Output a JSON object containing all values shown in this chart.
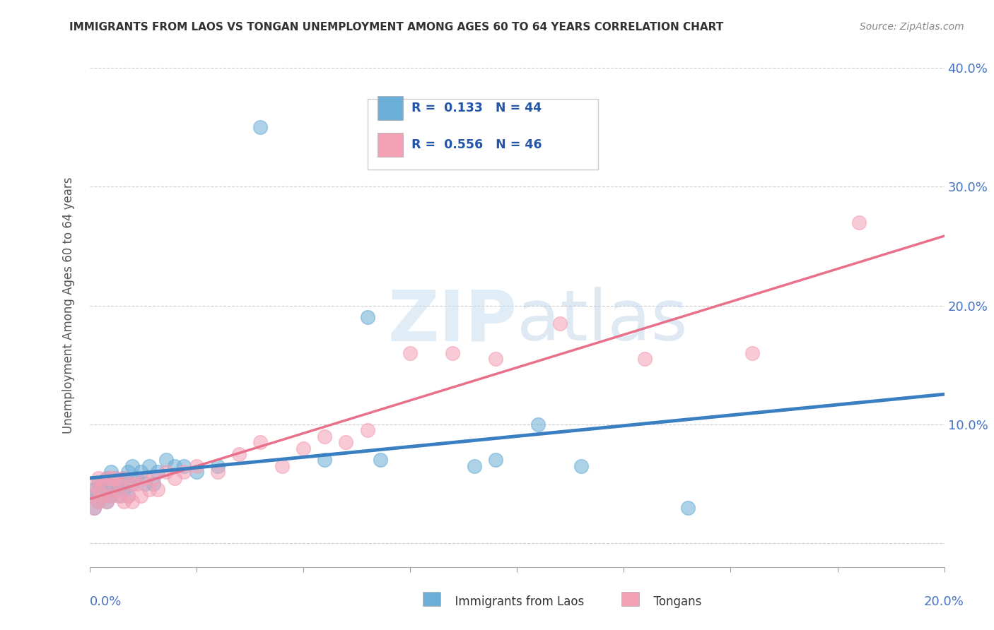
{
  "title": "IMMIGRANTS FROM LAOS VS TONGAN UNEMPLOYMENT AMONG AGES 60 TO 64 YEARS CORRELATION CHART",
  "source": "Source: ZipAtlas.com",
  "ylabel": "Unemployment Among Ages 60 to 64 years",
  "xlim": [
    0.0,
    0.2
  ],
  "ylim": [
    -0.02,
    0.42
  ],
  "yticks": [
    0.0,
    0.1,
    0.2,
    0.3,
    0.4
  ],
  "ytick_labels": [
    "",
    "10.0%",
    "20.0%",
    "30.0%",
    "40.0%"
  ],
  "color_laos": "#6baed6",
  "color_tongan": "#f4a0b5",
  "background_color": "#ffffff",
  "laos_x": [
    0.0005,
    0.001,
    0.001,
    0.002,
    0.002,
    0.002,
    0.003,
    0.003,
    0.004,
    0.004,
    0.004,
    0.005,
    0.005,
    0.005,
    0.006,
    0.006,
    0.007,
    0.007,
    0.008,
    0.008,
    0.009,
    0.009,
    0.01,
    0.01,
    0.011,
    0.012,
    0.013,
    0.014,
    0.015,
    0.016,
    0.018,
    0.02,
    0.022,
    0.025,
    0.03,
    0.04,
    0.055,
    0.065,
    0.068,
    0.09,
    0.095,
    0.105,
    0.115,
    0.14
  ],
  "laos_y": [
    0.04,
    0.03,
    0.045,
    0.035,
    0.04,
    0.05,
    0.04,
    0.05,
    0.035,
    0.045,
    0.055,
    0.04,
    0.05,
    0.06,
    0.045,
    0.055,
    0.04,
    0.05,
    0.045,
    0.055,
    0.04,
    0.06,
    0.05,
    0.065,
    0.055,
    0.06,
    0.05,
    0.065,
    0.05,
    0.06,
    0.07,
    0.065,
    0.065,
    0.06,
    0.065,
    0.35,
    0.07,
    0.19,
    0.07,
    0.065,
    0.07,
    0.1,
    0.065,
    0.03
  ],
  "tongan_x": [
    0.0005,
    0.001,
    0.001,
    0.002,
    0.002,
    0.002,
    0.003,
    0.003,
    0.004,
    0.004,
    0.005,
    0.005,
    0.006,
    0.006,
    0.007,
    0.007,
    0.008,
    0.008,
    0.009,
    0.01,
    0.01,
    0.011,
    0.012,
    0.013,
    0.014,
    0.015,
    0.016,
    0.018,
    0.02,
    0.022,
    0.025,
    0.03,
    0.035,
    0.04,
    0.045,
    0.05,
    0.055,
    0.06,
    0.065,
    0.075,
    0.085,
    0.095,
    0.11,
    0.13,
    0.155,
    0.18
  ],
  "tongan_y": [
    0.04,
    0.03,
    0.05,
    0.035,
    0.045,
    0.055,
    0.04,
    0.05,
    0.035,
    0.055,
    0.04,
    0.055,
    0.045,
    0.055,
    0.04,
    0.05,
    0.035,
    0.055,
    0.04,
    0.035,
    0.05,
    0.05,
    0.04,
    0.055,
    0.045,
    0.055,
    0.045,
    0.06,
    0.055,
    0.06,
    0.065,
    0.06,
    0.075,
    0.085,
    0.065,
    0.08,
    0.09,
    0.085,
    0.095,
    0.16,
    0.16,
    0.155,
    0.185,
    0.155,
    0.16,
    0.27
  ]
}
